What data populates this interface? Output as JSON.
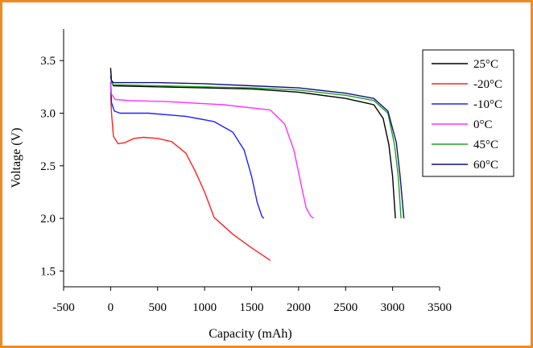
{
  "chart_data": {
    "type": "line",
    "title": "",
    "xlabel": "Capacity (mAh)",
    "ylabel": "Voltage (V)",
    "xlim": [
      -500,
      3500
    ],
    "ylim": [
      1.35,
      3.8
    ],
    "xticks": [
      -500,
      0,
      500,
      1000,
      1500,
      2000,
      2500,
      3000,
      3500
    ],
    "yticks": [
      1.5,
      2.0,
      2.5,
      3.0,
      3.5
    ],
    "xtick_labels": [
      "-500",
      "0",
      "500",
      "1000",
      "1500",
      "2000",
      "2500",
      "3000",
      "3500"
    ],
    "ytick_labels": [
      "1.5",
      "2.0",
      "2.5",
      "3.0",
      "3.5"
    ],
    "grid": false,
    "legend_position": "top-right",
    "series": [
      {
        "name": "25°C",
        "color": "#000000",
        "points": [
          [
            0,
            3.43
          ],
          [
            10,
            3.3
          ],
          [
            30,
            3.26
          ],
          [
            500,
            3.25
          ],
          [
            1000,
            3.24
          ],
          [
            1500,
            3.23
          ],
          [
            2000,
            3.2
          ],
          [
            2500,
            3.14
          ],
          [
            2800,
            3.08
          ],
          [
            2900,
            2.95
          ],
          [
            2960,
            2.7
          ],
          [
            3000,
            2.4
          ],
          [
            3030,
            2.0
          ]
        ]
      },
      {
        "name": "-20°C",
        "color": "#ff2020",
        "points": [
          [
            0,
            3.2
          ],
          [
            10,
            3.0
          ],
          [
            30,
            2.78
          ],
          [
            80,
            2.71
          ],
          [
            150,
            2.72
          ],
          [
            250,
            2.76
          ],
          [
            350,
            2.77
          ],
          [
            500,
            2.76
          ],
          [
            650,
            2.73
          ],
          [
            800,
            2.62
          ],
          [
            900,
            2.45
          ],
          [
            1000,
            2.25
          ],
          [
            1080,
            2.06
          ],
          [
            1100,
            2.01
          ],
          [
            1300,
            1.85
          ],
          [
            1500,
            1.72
          ],
          [
            1700,
            1.6
          ]
        ]
      },
      {
        "name": "-10°C",
        "color": "#2020ff",
        "points": [
          [
            0,
            3.3
          ],
          [
            10,
            3.1
          ],
          [
            40,
            3.02
          ],
          [
            100,
            3.0
          ],
          [
            400,
            3.0
          ],
          [
            800,
            2.97
          ],
          [
            1100,
            2.92
          ],
          [
            1300,
            2.82
          ],
          [
            1420,
            2.65
          ],
          [
            1500,
            2.4
          ],
          [
            1560,
            2.15
          ],
          [
            1610,
            2.02
          ],
          [
            1630,
            2.0
          ]
        ]
      },
      {
        "name": "0°C",
        "color": "#ff30ff",
        "points": [
          [
            0,
            3.3
          ],
          [
            10,
            3.18
          ],
          [
            50,
            3.13
          ],
          [
            200,
            3.12
          ],
          [
            600,
            3.11
          ],
          [
            1200,
            3.08
          ],
          [
            1700,
            3.03
          ],
          [
            1850,
            2.9
          ],
          [
            1950,
            2.65
          ],
          [
            2020,
            2.35
          ],
          [
            2080,
            2.1
          ],
          [
            2130,
            2.02
          ],
          [
            2160,
            2.0
          ]
        ]
      },
      {
        "name": "45°C",
        "color": "#20a020",
        "points": [
          [
            0,
            3.35
          ],
          [
            10,
            3.29
          ],
          [
            30,
            3.27
          ],
          [
            500,
            3.26
          ],
          [
            1000,
            3.25
          ],
          [
            1500,
            3.24
          ],
          [
            2000,
            3.22
          ],
          [
            2500,
            3.17
          ],
          [
            2800,
            3.12
          ],
          [
            2950,
            3.0
          ],
          [
            3020,
            2.7
          ],
          [
            3060,
            2.4
          ],
          [
            3090,
            2.0
          ]
        ]
      },
      {
        "name": "60°C",
        "color": "#101080",
        "points": [
          [
            0,
            3.36
          ],
          [
            10,
            3.31
          ],
          [
            30,
            3.29
          ],
          [
            500,
            3.29
          ],
          [
            1000,
            3.28
          ],
          [
            1500,
            3.26
          ],
          [
            2000,
            3.24
          ],
          [
            2500,
            3.19
          ],
          [
            2800,
            3.14
          ],
          [
            2950,
            3.02
          ],
          [
            3040,
            2.72
          ],
          [
            3080,
            2.4
          ],
          [
            3120,
            2.0
          ]
        ]
      }
    ]
  }
}
